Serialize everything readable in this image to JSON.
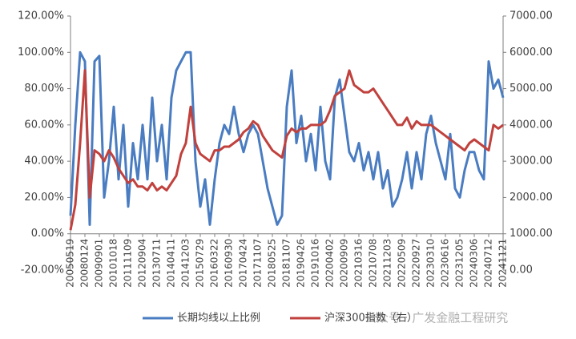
{
  "chart_data": {
    "type": "line",
    "categories": [
      "20050519",
      null,
      null,
      "20080124",
      null,
      null,
      "20090901",
      null,
      null,
      "20101018",
      null,
      null,
      "20111109",
      null,
      null,
      "20120904",
      null,
      null,
      "20130711",
      null,
      null,
      "20140411",
      null,
      null,
      "20141203",
      null,
      null,
      "20150729",
      null,
      null,
      "20160322",
      null,
      null,
      "20160930",
      null,
      null,
      "20170424",
      null,
      null,
      "20171107",
      null,
      null,
      "20180525",
      null,
      null,
      "20181107",
      null,
      null,
      "20190426",
      null,
      null,
      "20191016",
      null,
      null,
      "20200402",
      null,
      null,
      "20200909",
      null,
      null,
      "20210316",
      null,
      null,
      "20210708",
      null,
      null,
      "20211203",
      null,
      null,
      "20220509",
      null,
      null,
      "20220927",
      null,
      null,
      "20230310",
      null,
      null,
      "20230616",
      null,
      null,
      "20231205",
      null,
      null,
      "20240306",
      null,
      null,
      "20240712",
      null,
      null,
      "20241121"
    ],
    "series": [
      {
        "name": "长期均线以上比例",
        "color": "#4a7cc1",
        "axis": "y",
        "values": [
          10,
          60,
          100,
          95,
          5,
          95,
          98,
          20,
          40,
          70,
          30,
          60,
          15,
          50,
          30,
          60,
          30,
          75,
          40,
          60,
          30,
          75,
          90,
          95,
          100,
          100,
          40,
          15,
          30,
          5,
          30,
          50,
          60,
          55,
          70,
          55,
          45,
          55,
          60,
          55,
          40,
          25,
          15,
          5,
          10,
          70,
          90,
          50,
          65,
          40,
          55,
          35,
          70,
          40,
          30,
          75,
          85,
          65,
          45,
          40,
          50,
          35,
          45,
          30,
          45,
          25,
          35,
          15,
          20,
          30,
          45,
          25,
          45,
          30,
          55,
          65,
          50,
          40,
          30,
          55,
          25,
          20,
          35,
          45,
          45,
          35,
          30,
          95,
          80,
          85,
          75
        ]
      },
      {
        "name": "沪深300指数（右）",
        "color": "#c0413d",
        "axis": "y2",
        "values": [
          1100,
          1800,
          3500,
          5500,
          2000,
          3300,
          3200,
          3000,
          3300,
          3100,
          2800,
          2600,
          2400,
          2500,
          2300,
          2300,
          2200,
          2400,
          2200,
          2300,
          2200,
          2400,
          2600,
          3200,
          3500,
          4500,
          3500,
          3200,
          3100,
          3000,
          3300,
          3300,
          3400,
          3400,
          3500,
          3600,
          3800,
          3900,
          4100,
          4000,
          3700,
          3500,
          3300,
          3200,
          3100,
          3700,
          3900,
          3800,
          3900,
          3900,
          4000,
          4000,
          4000,
          4100,
          4400,
          4800,
          4900,
          5000,
          5500,
          5100,
          5000,
          4900,
          4900,
          5000,
          4800,
          4600,
          4400,
          4200,
          4000,
          4000,
          4200,
          3900,
          4100,
          4000,
          4000,
          4000,
          3900,
          3800,
          3700,
          3600,
          3500,
          3400,
          3300,
          3500,
          3600,
          3500,
          3400,
          3300,
          4000,
          3900,
          4000
        ]
      }
    ],
    "ylim": [
      -20,
      120
    ],
    "yticks": [
      {
        "value": -20,
        "label": "-20.00%"
      },
      {
        "value": 0,
        "label": "0.00%"
      },
      {
        "value": 20,
        "label": "20.00%"
      },
      {
        "value": 40,
        "label": "40.00%"
      },
      {
        "value": 60,
        "label": "60.00%"
      },
      {
        "value": 80,
        "label": "80.00%"
      },
      {
        "value": 100,
        "label": "100.00%"
      },
      {
        "value": 120,
        "label": "120.00%"
      }
    ],
    "y2lim": [
      0,
      7000
    ],
    "y2ticks": [
      {
        "value": 0,
        "label": "0.00"
      },
      {
        "value": 1000,
        "label": "1000.00"
      },
      {
        "value": 2000,
        "label": "2000.00"
      },
      {
        "value": 3000,
        "label": "3000.00"
      },
      {
        "value": 4000,
        "label": "4000.00"
      },
      {
        "value": 5000,
        "label": "5000.00"
      },
      {
        "value": 6000,
        "label": "6000.00"
      },
      {
        "value": 7000,
        "label": "7000.00"
      }
    ],
    "legend": "bottom",
    "annotations": [
      "公众号 · 广发金融工程研究"
    ]
  }
}
